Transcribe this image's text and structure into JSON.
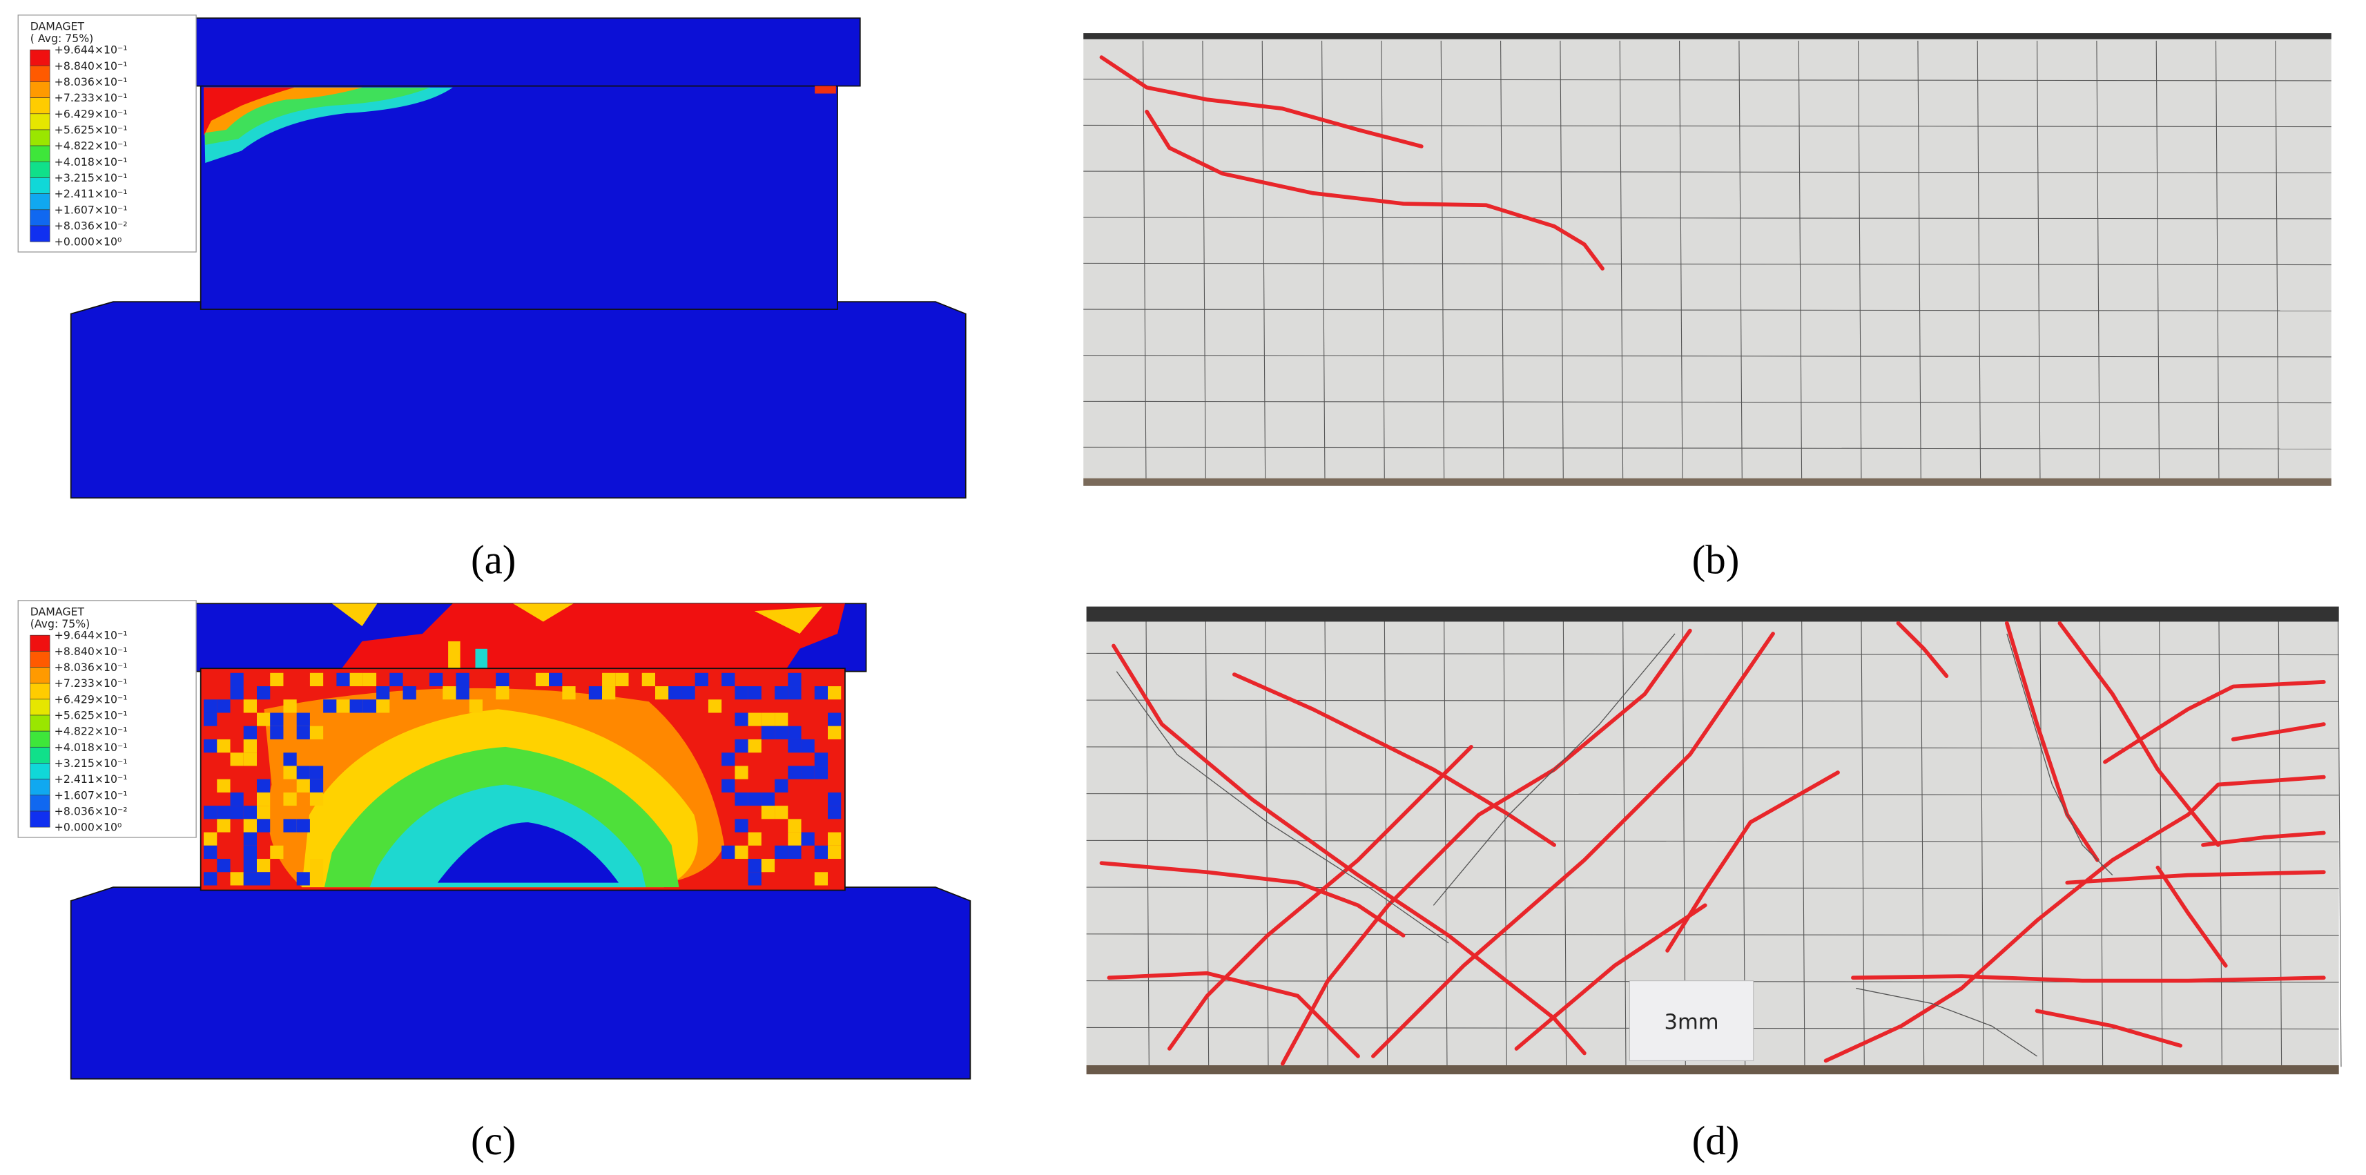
{
  "panels": [
    {
      "label": "(a)",
      "legend": {
        "title": "DAMAGET",
        "subtitle": "( Avg: 75%)",
        "values": [
          "+9.644×10⁻¹",
          "+8.840×10⁻¹",
          "+8.036×10⁻¹",
          "+7.233×10⁻¹",
          "+6.429×10⁻¹",
          "+5.625×10⁻¹",
          "+4.822×10⁻¹",
          "+4.018×10⁻¹",
          "+3.215×10⁻¹",
          "+2.411×10⁻¹",
          "+1.607×10⁻¹",
          "+8.036×10⁻²",
          "+0.000×10⁰"
        ]
      }
    },
    {
      "label": "(b)"
    },
    {
      "label": "(c)",
      "legend": {
        "title": "DAMAGET",
        "subtitle": "(Avg: 75%)",
        "values": [
          "+9.644×10⁻¹",
          "+8.840×10⁻¹",
          "+8.036×10⁻¹",
          "+7.233×10⁻¹",
          "+6.429×10⁻¹",
          "+5.625×10⁻¹",
          "+4.822×10⁻¹",
          "+4.018×10⁻¹",
          "+3.215×10⁻¹",
          "+2.411×10⁻¹",
          "+1.607×10⁻¹",
          "+8.036×10⁻²",
          "+0.000×10⁰"
        ]
      }
    },
    {
      "label": "(d)",
      "sign": "3mm"
    }
  ]
}
